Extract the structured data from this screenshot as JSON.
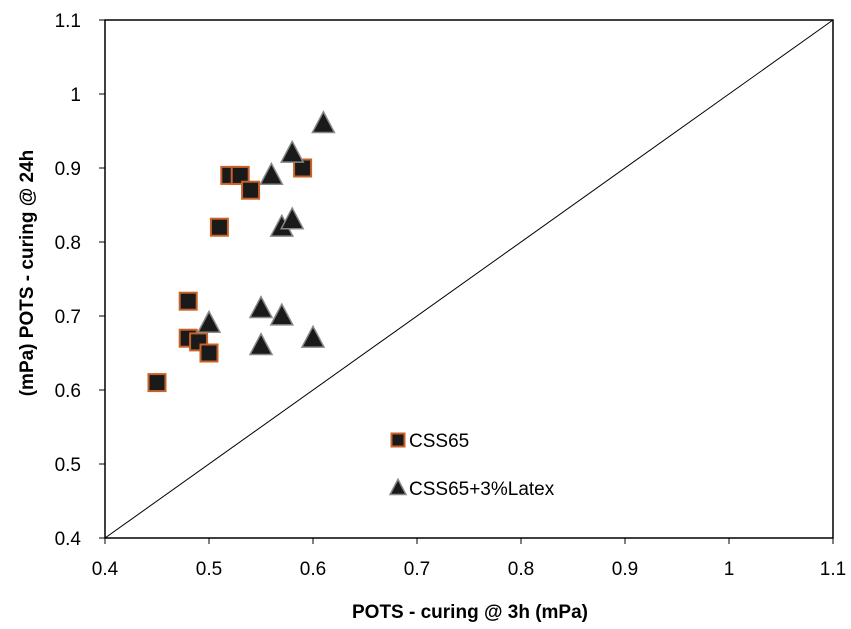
{
  "chart_data": {
    "type": "scatter",
    "xlabel": "POTS - curing @ 3h (mPa)",
    "ylabel": "(mPa) POTS - curing @ 24h",
    "xlim": [
      0.4,
      1.1
    ],
    "ylim": [
      0.4,
      1.1
    ],
    "x_ticks": [
      "0.4",
      "0.5",
      "0.6",
      "0.7",
      "0.8",
      "0.9",
      "1",
      "1.1"
    ],
    "y_ticks": [
      "0.4",
      "0.5",
      "0.6",
      "0.7",
      "0.8",
      "0.9",
      "1",
      "1.1"
    ],
    "grid": false,
    "reference_line": {
      "from": [
        0.4,
        0.4
      ],
      "to": [
        1.1,
        1.1
      ]
    },
    "legend_position": "center-right",
    "series": [
      {
        "name": "CSS65",
        "marker": "square",
        "fill": "#1a1a1a",
        "edge": "#c8622a",
        "points": [
          [
            0.45,
            0.61
          ],
          [
            0.48,
            0.72
          ],
          [
            0.48,
            0.67
          ],
          [
            0.49,
            0.665
          ],
          [
            0.5,
            0.65
          ],
          [
            0.51,
            0.82
          ],
          [
            0.52,
            0.89
          ],
          [
            0.53,
            0.89
          ],
          [
            0.54,
            0.87
          ],
          [
            0.59,
            0.9
          ]
        ]
      },
      {
        "name": "CSS65+3%Latex",
        "marker": "triangle",
        "fill": "#1a1a1a",
        "edge": "#888888",
        "points": [
          [
            0.5,
            0.69
          ],
          [
            0.55,
            0.71
          ],
          [
            0.55,
            0.66
          ],
          [
            0.56,
            0.89
          ],
          [
            0.57,
            0.7
          ],
          [
            0.57,
            0.82
          ],
          [
            0.58,
            0.83
          ],
          [
            0.58,
            0.92
          ],
          [
            0.6,
            0.67
          ],
          [
            0.61,
            0.96
          ]
        ]
      }
    ]
  }
}
